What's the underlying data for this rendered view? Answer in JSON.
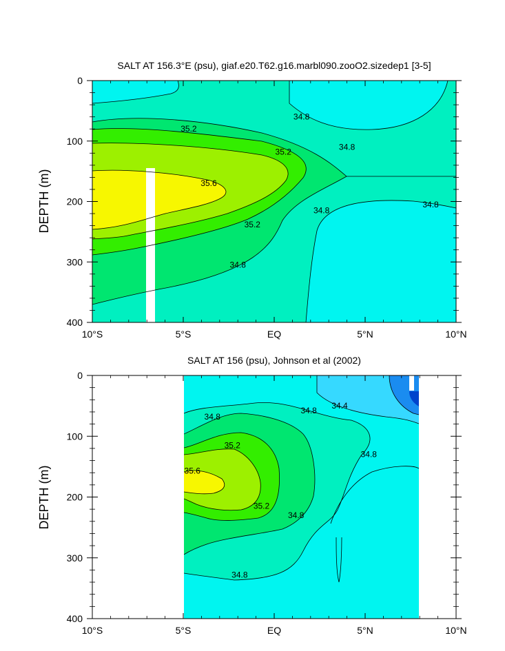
{
  "colors": {
    "c_lt_34_4": "#1a8cf0",
    "c_34_4_34_6": "#36d9ff",
    "c_34_6_34_8": "#00f5f0",
    "c_34_8_35_0": "#00f0c0",
    "c_35_0_35_2": "#00e670",
    "c_35_2_35_4": "#33ee00",
    "c_35_4_35_6": "#9df000",
    "c_gt_35_6": "#f7f700",
    "c_deep": "#0044cc"
  },
  "chart_data": [
    {
      "type": "contour",
      "title": "SALT AT 156.3°E (psu), giaf.e20.T62.g16.marbl090.zooO2.sizedep1 [3-5]",
      "xlabel": "",
      "ylabel": "DEPTH (m)",
      "xlim": [
        -10,
        10
      ],
      "ylim": [
        400,
        0
      ],
      "x_ticks": [
        -10,
        -5,
        0,
        5,
        10
      ],
      "x_tick_labels": [
        "10°S",
        "5°S",
        "EQ",
        "5°N",
        "10°N"
      ],
      "y_ticks": [
        0,
        100,
        200,
        300,
        400
      ],
      "y_tick_labels": [
        "0",
        "100",
        "200",
        "300",
        "400"
      ],
      "contour_levels": [
        34.4,
        34.6,
        34.8,
        35.0,
        35.2,
        35.4,
        35.6
      ],
      "contour_labels": [
        {
          "text": "34.8",
          "x": 1.5,
          "depth": 60
        },
        {
          "text": "34.8",
          "x": 4.0,
          "depth": 110
        },
        {
          "text": "34.8",
          "x": 8.6,
          "depth": 205
        },
        {
          "text": "34.8",
          "x": 2.6,
          "depth": 215
        },
        {
          "text": "34.8",
          "x": -2.0,
          "depth": 305
        },
        {
          "text": "35.2",
          "x": -4.7,
          "depth": 80
        },
        {
          "text": "35.2",
          "x": 0.5,
          "depth": 118
        },
        {
          "text": "35.2",
          "x": -1.2,
          "depth": 238
        },
        {
          "text": "35.6",
          "x": -3.6,
          "depth": 170
        }
      ],
      "missing_data": [
        {
          "x_min": -7.0,
          "x_max": -6.45,
          "depth_min": 144,
          "depth_max": 400
        }
      ],
      "data_x_range": [
        -10,
        10
      ]
    },
    {
      "type": "contour",
      "title": "SALT AT 156 (psu), Johnson et al (2002)",
      "xlabel": "",
      "ylabel": "DEPTH (m)",
      "xlim": [
        -10,
        10
      ],
      "ylim": [
        400,
        0
      ],
      "x_ticks": [
        -10,
        -5,
        0,
        5,
        10
      ],
      "x_tick_labels": [
        "10°S",
        "5°S",
        "EQ",
        "5°N",
        "10°N"
      ],
      "y_ticks": [
        0,
        100,
        200,
        300,
        400
      ],
      "y_tick_labels": [
        "0",
        "100",
        "200",
        "300",
        "400"
      ],
      "contour_levels": [
        34.2,
        34.4,
        34.6,
        34.8,
        35.0,
        35.2,
        35.4,
        35.6
      ],
      "contour_labels": [
        {
          "text": "34.8",
          "x": -3.4,
          "depth": 68
        },
        {
          "text": "34.8",
          "x": 1.9,
          "depth": 58
        },
        {
          "text": "34.4",
          "x": 3.6,
          "depth": 50
        },
        {
          "text": "34.8",
          "x": 5.2,
          "depth": 130
        },
        {
          "text": "35.2",
          "x": -2.3,
          "depth": 115
        },
        {
          "text": "35.6",
          "x": -4.5,
          "depth": 157
        },
        {
          "text": "35.2",
          "x": -0.7,
          "depth": 215
        },
        {
          "text": "34.8",
          "x": 1.2,
          "depth": 230
        },
        {
          "text": "34.8",
          "x": -1.9,
          "depth": 328
        }
      ],
      "missing_data": [
        {
          "x_min": 7.4,
          "x_max": 7.7,
          "depth_min": 0,
          "depth_max": 25
        }
      ],
      "data_x_range": [
        -5,
        8
      ]
    }
  ]
}
